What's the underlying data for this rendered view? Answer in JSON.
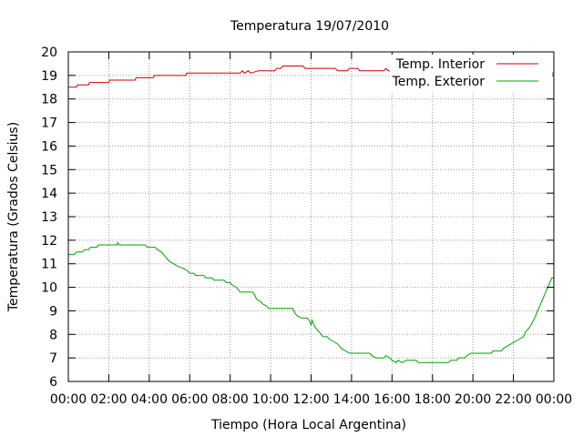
{
  "chart_data": {
    "type": "line",
    "title": "Temperatura 19/07/2010",
    "xlabel": "Tiempo (Hora Local Argentina)",
    "ylabel": "Temperatura (Grados Celsius)",
    "xlim": [
      0,
      24
    ],
    "ylim": [
      6,
      20
    ],
    "xticks": [
      "00:00",
      "02:00",
      "04:00",
      "06:00",
      "08:00",
      "10:00",
      "12:00",
      "14:00",
      "16:00",
      "18:00",
      "20:00",
      "22:00",
      "00:00"
    ],
    "yticks": [
      "6",
      "7",
      "8",
      "9",
      "10",
      "11",
      "12",
      "13",
      "14",
      "15",
      "16",
      "17",
      "18",
      "19",
      "20"
    ],
    "grid": true,
    "legend_position": "top-right",
    "series": [
      {
        "name": "Temp. Interior",
        "color": "#cc0000",
        "points": [
          [
            0.0,
            18.5
          ],
          [
            0.4,
            18.5
          ],
          [
            0.45,
            18.6
          ],
          [
            1.0,
            18.6
          ],
          [
            1.05,
            18.7
          ],
          [
            2.0,
            18.7
          ],
          [
            2.05,
            18.8
          ],
          [
            3.3,
            18.8
          ],
          [
            3.35,
            18.9
          ],
          [
            4.2,
            18.9
          ],
          [
            4.25,
            19.0
          ],
          [
            5.8,
            19.0
          ],
          [
            5.85,
            19.1
          ],
          [
            8.5,
            19.1
          ],
          [
            8.6,
            19.2
          ],
          [
            8.7,
            19.1
          ],
          [
            8.9,
            19.2
          ],
          [
            9.0,
            19.1
          ],
          [
            9.4,
            19.2
          ],
          [
            10.2,
            19.2
          ],
          [
            10.3,
            19.3
          ],
          [
            10.5,
            19.3
          ],
          [
            10.6,
            19.4
          ],
          [
            11.6,
            19.4
          ],
          [
            11.7,
            19.3
          ],
          [
            13.2,
            19.3
          ],
          [
            13.3,
            19.2
          ],
          [
            13.8,
            19.2
          ],
          [
            13.9,
            19.3
          ],
          [
            14.3,
            19.3
          ],
          [
            14.4,
            19.2
          ],
          [
            15.6,
            19.2
          ],
          [
            15.7,
            19.3
          ],
          [
            15.8,
            19.2
          ],
          [
            17.9,
            19.2
          ],
          [
            18.0,
            19.3
          ],
          [
            18.1,
            19.2
          ],
          [
            19.3,
            19.2
          ],
          [
            19.4,
            19.1
          ],
          [
            22.6,
            19.1
          ],
          [
            22.7,
            19.0
          ],
          [
            22.8,
            19.1
          ],
          [
            23.3,
            19.1
          ],
          [
            23.4,
            19.2
          ],
          [
            23.7,
            19.2
          ],
          [
            23.8,
            19.1
          ],
          [
            24.0,
            19.1
          ]
        ]
      },
      {
        "name": "Temp. Exterior",
        "color": "#00a000",
        "points": [
          [
            0.0,
            11.4
          ],
          [
            0.3,
            11.4
          ],
          [
            0.4,
            11.5
          ],
          [
            0.7,
            11.5
          ],
          [
            0.8,
            11.6
          ],
          [
            1.0,
            11.6
          ],
          [
            1.1,
            11.7
          ],
          [
            1.4,
            11.7
          ],
          [
            1.5,
            11.8
          ],
          [
            2.4,
            11.8
          ],
          [
            2.45,
            11.9
          ],
          [
            2.5,
            11.8
          ],
          [
            3.8,
            11.8
          ],
          [
            3.9,
            11.7
          ],
          [
            4.3,
            11.7
          ],
          [
            4.4,
            11.6
          ],
          [
            4.6,
            11.5
          ],
          [
            4.8,
            11.3
          ],
          [
            5.0,
            11.1
          ],
          [
            5.2,
            11.0
          ],
          [
            5.4,
            10.9
          ],
          [
            5.7,
            10.8
          ],
          [
            5.9,
            10.7
          ],
          [
            6.0,
            10.6
          ],
          [
            6.2,
            10.6
          ],
          [
            6.3,
            10.5
          ],
          [
            6.7,
            10.5
          ],
          [
            6.8,
            10.4
          ],
          [
            7.1,
            10.4
          ],
          [
            7.2,
            10.3
          ],
          [
            7.7,
            10.3
          ],
          [
            7.8,
            10.2
          ],
          [
            8.0,
            10.2
          ],
          [
            8.1,
            10.1
          ],
          [
            8.3,
            10.0
          ],
          [
            8.4,
            9.9
          ],
          [
            8.5,
            9.8
          ],
          [
            9.1,
            9.8
          ],
          [
            9.2,
            9.7
          ],
          [
            9.3,
            9.5
          ],
          [
            9.5,
            9.4
          ],
          [
            9.6,
            9.3
          ],
          [
            9.8,
            9.2
          ],
          [
            9.9,
            9.1
          ],
          [
            11.1,
            9.1
          ],
          [
            11.2,
            8.9
          ],
          [
            11.3,
            8.8
          ],
          [
            11.5,
            8.7
          ],
          [
            11.8,
            8.7
          ],
          [
            11.9,
            8.6
          ],
          [
            12.0,
            8.4
          ],
          [
            12.05,
            8.6
          ],
          [
            12.1,
            8.5
          ],
          [
            12.2,
            8.3
          ],
          [
            12.4,
            8.1
          ],
          [
            12.6,
            7.9
          ],
          [
            12.8,
            7.9
          ],
          [
            12.9,
            7.8
          ],
          [
            13.1,
            7.7
          ],
          [
            13.3,
            7.6
          ],
          [
            13.5,
            7.4
          ],
          [
            13.7,
            7.3
          ],
          [
            13.9,
            7.2
          ],
          [
            14.9,
            7.2
          ],
          [
            15.0,
            7.1
          ],
          [
            15.2,
            7.0
          ],
          [
            15.6,
            7.0
          ],
          [
            15.7,
            7.1
          ],
          [
            15.9,
            7.0
          ],
          [
            16.0,
            6.9
          ],
          [
            16.2,
            6.8
          ],
          [
            16.3,
            6.9
          ],
          [
            16.5,
            6.8
          ],
          [
            16.7,
            6.9
          ],
          [
            17.2,
            6.9
          ],
          [
            17.3,
            6.8
          ],
          [
            18.8,
            6.8
          ],
          [
            18.9,
            6.9
          ],
          [
            19.2,
            6.9
          ],
          [
            19.3,
            7.0
          ],
          [
            19.6,
            7.0
          ],
          [
            19.7,
            7.1
          ],
          [
            19.9,
            7.2
          ],
          [
            20.9,
            7.2
          ],
          [
            21.0,
            7.3
          ],
          [
            21.4,
            7.3
          ],
          [
            21.5,
            7.4
          ],
          [
            21.7,
            7.5
          ],
          [
            21.9,
            7.6
          ],
          [
            22.1,
            7.7
          ],
          [
            22.3,
            7.8
          ],
          [
            22.5,
            7.9
          ],
          [
            22.6,
            8.1
          ],
          [
            22.8,
            8.3
          ],
          [
            23.0,
            8.6
          ],
          [
            23.2,
            9.0
          ],
          [
            23.4,
            9.4
          ],
          [
            23.6,
            9.8
          ],
          [
            23.8,
            10.2
          ],
          [
            23.9,
            10.4
          ],
          [
            24.0,
            10.4
          ]
        ]
      }
    ]
  }
}
